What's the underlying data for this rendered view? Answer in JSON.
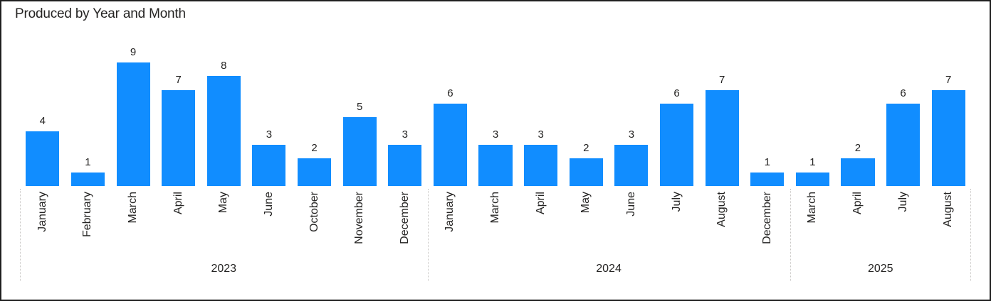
{
  "title": "Produced by Year and Month",
  "chart_data": {
    "type": "bar",
    "title": "Produced by Year and Month",
    "x_hierarchy": [
      "Year",
      "Month"
    ],
    "categories": [
      "2023 January",
      "2023 February",
      "2023 March",
      "2023 April",
      "2023 May",
      "2023 June",
      "2023 October",
      "2023 November",
      "2023 December",
      "2024 January",
      "2024 March",
      "2024 April",
      "2024 May",
      "2024 June",
      "2024 July",
      "2024 August",
      "2024 December",
      "2025 March",
      "2025 April",
      "2025 July",
      "2025 August"
    ],
    "groups": [
      {
        "year": "2023",
        "months": [
          "January",
          "February",
          "March",
          "April",
          "May",
          "June",
          "October",
          "November",
          "December"
        ],
        "values": [
          4,
          1,
          9,
          7,
          8,
          3,
          2,
          5,
          3
        ]
      },
      {
        "year": "2024",
        "months": [
          "January",
          "March",
          "April",
          "May",
          "June",
          "July",
          "August",
          "December"
        ],
        "values": [
          6,
          3,
          3,
          2,
          3,
          6,
          7,
          1
        ]
      },
      {
        "year": "2025",
        "months": [
          "March",
          "April",
          "July",
          "August"
        ],
        "values": [
          1,
          2,
          6,
          7
        ]
      }
    ],
    "ylim": [
      0,
      9
    ],
    "data_labels_shown": true,
    "grid": false,
    "legend": "none",
    "bar_color": "#118DFF",
    "text_color": "#252423",
    "separator_color": "#c9c7c5"
  }
}
